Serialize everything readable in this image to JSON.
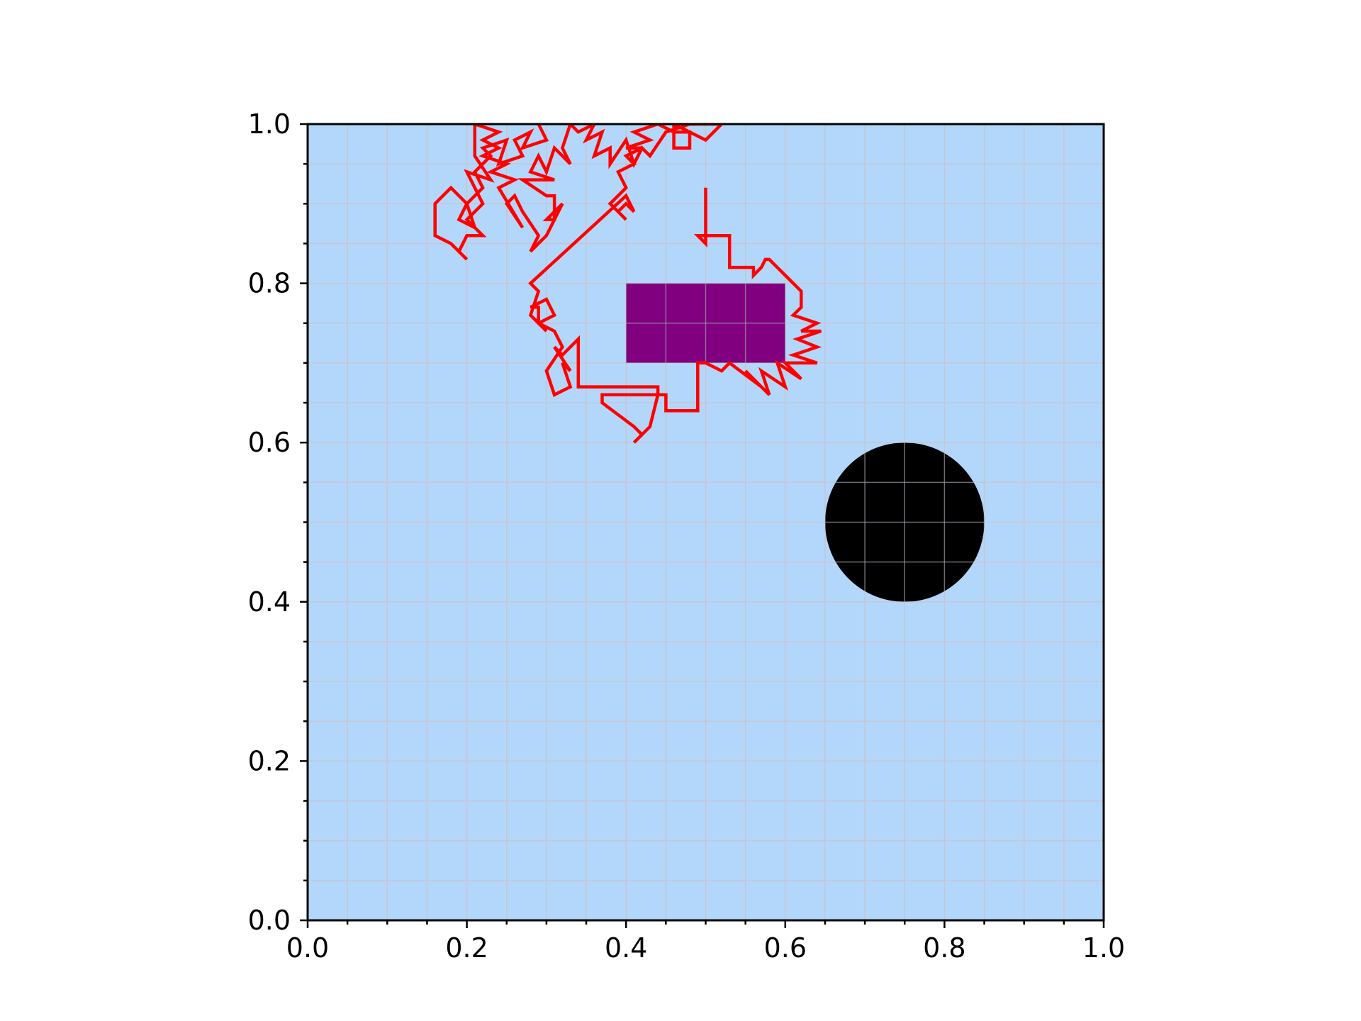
{
  "chart_data": {
    "type": "line",
    "title": "",
    "xlabel": "",
    "ylabel": "",
    "xlim": [
      0.0,
      1.0
    ],
    "ylim": [
      0.0,
      1.0
    ],
    "grid": true,
    "minor_ticks": true,
    "x_ticks": [
      "0.0",
      "0.2",
      "0.4",
      "0.6",
      "0.8",
      "1.0"
    ],
    "y_ticks": [
      "0.0",
      "0.2",
      "0.4",
      "0.6",
      "0.8",
      "1.0"
    ],
    "colors": {
      "background": "#b3d7fb",
      "path": "#ff0000",
      "rectangle": "#800080",
      "circle": "#000000",
      "grid": "#c6c6d2"
    },
    "obstacles": [
      {
        "shape": "rectangle",
        "x": [
          0.4,
          0.6
        ],
        "y": [
          0.7,
          0.8
        ],
        "color": "#800080"
      },
      {
        "shape": "circle",
        "center": [
          0.75,
          0.5
        ],
        "radius": 0.1,
        "color": "#000000"
      }
    ],
    "series": [
      {
        "color": "#ff0000",
        "points": [
          [
            0.5,
            0.92
          ],
          [
            0.5,
            0.85
          ],
          [
            0.49,
            0.86
          ],
          [
            0.53,
            0.86
          ],
          [
            0.53,
            0.82
          ],
          [
            0.56,
            0.82
          ],
          [
            0.56,
            0.81
          ],
          [
            0.57,
            0.82
          ],
          [
            0.575,
            0.83
          ],
          [
            0.58,
            0.83
          ],
          [
            0.6,
            0.81
          ],
          [
            0.62,
            0.79
          ],
          [
            0.62,
            0.77
          ],
          [
            0.61,
            0.76
          ],
          [
            0.64,
            0.75
          ],
          [
            0.62,
            0.74
          ],
          [
            0.645,
            0.74
          ],
          [
            0.615,
            0.73
          ],
          [
            0.64,
            0.72
          ],
          [
            0.61,
            0.71
          ],
          [
            0.64,
            0.7
          ],
          [
            0.6,
            0.7
          ],
          [
            0.62,
            0.68
          ],
          [
            0.59,
            0.7
          ],
          [
            0.6,
            0.67
          ],
          [
            0.57,
            0.69
          ],
          [
            0.58,
            0.66
          ],
          [
            0.55,
            0.69
          ],
          [
            0.57,
            0.67
          ],
          [
            0.53,
            0.7
          ],
          [
            0.52,
            0.69
          ],
          [
            0.5,
            0.7
          ],
          [
            0.49,
            0.7
          ],
          [
            0.49,
            0.64
          ],
          [
            0.45,
            0.64
          ],
          [
            0.45,
            0.66
          ],
          [
            0.44,
            0.66
          ],
          [
            0.43,
            0.62
          ],
          [
            0.41,
            0.6
          ],
          [
            0.42,
            0.61
          ],
          [
            0.41,
            0.62
          ],
          [
            0.37,
            0.65
          ],
          [
            0.37,
            0.66
          ],
          [
            0.44,
            0.66
          ],
          [
            0.44,
            0.67
          ],
          [
            0.34,
            0.67
          ],
          [
            0.34,
            0.73
          ],
          [
            0.32,
            0.71
          ],
          [
            0.31,
            0.72
          ],
          [
            0.33,
            0.69
          ],
          [
            0.32,
            0.7
          ],
          [
            0.33,
            0.67
          ],
          [
            0.31,
            0.66
          ],
          [
            0.3,
            0.69
          ],
          [
            0.32,
            0.72
          ],
          [
            0.31,
            0.74
          ],
          [
            0.29,
            0.75
          ],
          [
            0.29,
            0.77
          ],
          [
            0.28,
            0.77
          ],
          [
            0.3,
            0.78
          ],
          [
            0.31,
            0.76
          ],
          [
            0.29,
            0.75
          ],
          [
            0.3,
            0.74
          ],
          [
            0.28,
            0.76
          ],
          [
            0.29,
            0.79
          ],
          [
            0.28,
            0.8
          ],
          [
            0.4,
            0.91
          ],
          [
            0.41,
            0.89
          ],
          [
            0.4,
            0.9
          ],
          [
            0.39,
            0.89
          ],
          [
            0.4,
            0.88
          ],
          [
            0.38,
            0.9
          ],
          [
            0.4,
            0.92
          ],
          [
            0.39,
            0.94
          ],
          [
            0.41,
            0.95
          ],
          [
            0.4,
            0.96
          ],
          [
            0.42,
            0.97
          ],
          [
            0.4,
            0.97
          ],
          [
            0.43,
            0.98
          ],
          [
            0.41,
            0.99
          ],
          [
            0.44,
            1.0
          ],
          [
            0.46,
            0.99
          ],
          [
            0.48,
            0.99
          ],
          [
            0.48,
            0.97
          ],
          [
            0.46,
            0.97
          ],
          [
            0.46,
            1.0
          ],
          [
            0.5,
            0.98
          ],
          [
            0.52,
            1.0
          ],
          [
            0.48,
            1.0
          ],
          [
            0.45,
            0.99
          ],
          [
            0.43,
            0.96
          ],
          [
            0.42,
            0.97
          ],
          [
            0.41,
            0.95
          ],
          [
            0.4,
            0.98
          ],
          [
            0.38,
            0.95
          ],
          [
            0.38,
            0.97
          ],
          [
            0.36,
            0.96
          ],
          [
            0.37,
            0.99
          ],
          [
            0.35,
            0.98
          ],
          [
            0.36,
            1.0
          ],
          [
            0.34,
            0.99
          ],
          [
            0.33,
            1.0
          ],
          [
            0.32,
            0.97
          ],
          [
            0.33,
            0.95
          ],
          [
            0.31,
            0.97
          ],
          [
            0.3,
            0.94
          ],
          [
            0.29,
            0.96
          ],
          [
            0.28,
            0.94
          ],
          [
            0.31,
            0.93
          ],
          [
            0.27,
            0.93
          ],
          [
            0.3,
            0.91
          ],
          [
            0.31,
            0.91
          ],
          [
            0.31,
            0.88
          ],
          [
            0.3,
            0.88
          ],
          [
            0.32,
            0.9
          ],
          [
            0.3,
            0.86
          ],
          [
            0.28,
            0.84
          ],
          [
            0.29,
            0.86
          ],
          [
            0.27,
            0.89
          ],
          [
            0.26,
            0.91
          ],
          [
            0.25,
            0.9
          ],
          [
            0.27,
            0.87
          ],
          [
            0.24,
            0.92
          ],
          [
            0.26,
            0.93
          ],
          [
            0.23,
            0.94
          ],
          [
            0.25,
            0.95
          ],
          [
            0.22,
            0.96
          ],
          [
            0.24,
            0.97
          ],
          [
            0.22,
            0.98
          ],
          [
            0.24,
            0.99
          ],
          [
            0.21,
            1.0
          ],
          [
            0.21,
            0.96
          ],
          [
            0.23,
            0.93
          ],
          [
            0.2,
            0.94
          ],
          [
            0.22,
            0.9
          ],
          [
            0.2,
            0.88
          ],
          [
            0.22,
            0.86
          ],
          [
            0.2,
            0.86
          ],
          [
            0.19,
            0.84
          ],
          [
            0.2,
            0.83
          ],
          [
            0.18,
            0.85
          ],
          [
            0.16,
            0.86
          ],
          [
            0.16,
            0.9
          ],
          [
            0.18,
            0.92
          ],
          [
            0.2,
            0.9
          ],
          [
            0.19,
            0.88
          ],
          [
            0.21,
            0.87
          ],
          [
            0.2,
            0.9
          ],
          [
            0.22,
            0.92
          ],
          [
            0.21,
            0.94
          ],
          [
            0.23,
            0.96
          ],
          [
            0.22,
            0.97
          ],
          [
            0.25,
            0.98
          ],
          [
            0.24,
            0.95
          ],
          [
            0.27,
            0.96
          ],
          [
            0.26,
            0.98
          ],
          [
            0.28,
            0.99
          ],
          [
            0.27,
            0.97
          ],
          [
            0.3,
            0.98
          ],
          [
            0.29,
            1.0
          ]
        ]
      }
    ]
  }
}
